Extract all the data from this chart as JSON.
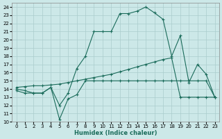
{
  "xlabel": "Humidex (Indice chaleur)",
  "xlim": [
    -0.5,
    23.5
  ],
  "ylim": [
    10,
    24.5
  ],
  "yticks": [
    10,
    11,
    12,
    13,
    14,
    15,
    16,
    17,
    18,
    19,
    20,
    21,
    22,
    23,
    24
  ],
  "xticks": [
    0,
    1,
    2,
    3,
    4,
    5,
    6,
    7,
    8,
    9,
    10,
    11,
    12,
    13,
    14,
    15,
    16,
    17,
    18,
    19,
    20,
    21,
    22,
    23
  ],
  "bg_color": "#cce8e8",
  "grid_color": "#aacccc",
  "line_color": "#1a6b5a",
  "line1_x": [
    0,
    1,
    2,
    3,
    4,
    5,
    6,
    7,
    8,
    9,
    10,
    11,
    12,
    13,
    14,
    15,
    16,
    17,
    18,
    19,
    20,
    21,
    22,
    23
  ],
  "line1_y": [
    13.8,
    13.5,
    13.5,
    13.5,
    14.2,
    10.3,
    12.8,
    13.3,
    15.0,
    15.0,
    15.0,
    15.0,
    15.0,
    15.0,
    15.0,
    15.0,
    15.0,
    15.0,
    15.0,
    15.0,
    15.0,
    15.0,
    15.0,
    13.0
  ],
  "line2_x": [
    0,
    1,
    2,
    3,
    4,
    5,
    6,
    7,
    8,
    9,
    10,
    11,
    12,
    13,
    14,
    15,
    16,
    17,
    18,
    19,
    20,
    21,
    22,
    23
  ],
  "line2_y": [
    14.0,
    13.8,
    13.5,
    13.5,
    14.2,
    12.0,
    13.5,
    16.5,
    18.0,
    21.0,
    21.0,
    21.0,
    23.2,
    23.2,
    23.5,
    24.0,
    23.3,
    22.5,
    18.0,
    20.5,
    14.8,
    17.0,
    15.8,
    13.0
  ],
  "line3_x": [
    0,
    1,
    2,
    3,
    4,
    5,
    6,
    7,
    8,
    9,
    10,
    11,
    12,
    13,
    14,
    15,
    16,
    17,
    18,
    19,
    20,
    21,
    22,
    23
  ],
  "line3_y": [
    14.2,
    14.3,
    14.4,
    14.4,
    14.5,
    14.6,
    14.8,
    15.0,
    15.2,
    15.4,
    15.6,
    15.8,
    16.1,
    16.4,
    16.7,
    17.0,
    17.3,
    17.6,
    17.8,
    13.0,
    13.0,
    13.0,
    13.0,
    13.0
  ]
}
